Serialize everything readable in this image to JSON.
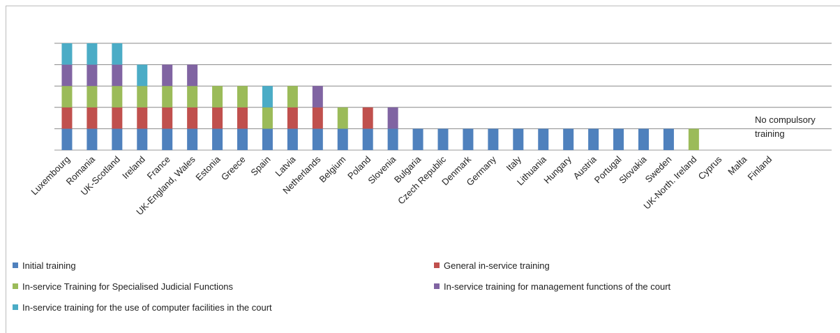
{
  "chart_data": {
    "type": "stacked_bar",
    "categories": [
      "Luxembourg",
      "Romania",
      "UK-Scotland",
      "Ireland",
      "France",
      "UK-England,  Wales",
      "Estonia",
      "Greece",
      "Spain",
      "Latvia",
      "Netherlands",
      "Belgium",
      "Poland",
      "Slovenia",
      "Bulgaria",
      "Czech Republic",
      "Denmark",
      "Germany",
      "Italy",
      "Lithuania",
      "Hungary",
      "Austria",
      "Portugal",
      "Slovakia",
      "Sweden",
      "UK-North. Ireland",
      "Cyprus",
      "Malta",
      "Finland"
    ],
    "series": [
      {
        "name": "Initial training",
        "color": "#4f81bd",
        "values": [
          1,
          1,
          1,
          1,
          1,
          1,
          1,
          1,
          1,
          1,
          1,
          1,
          1,
          1,
          1,
          1,
          1,
          1,
          1,
          1,
          1,
          1,
          1,
          1,
          1,
          0,
          0,
          0,
          0
        ]
      },
      {
        "name": "General in-service training",
        "color": "#c0504d",
        "values": [
          1,
          1,
          1,
          1,
          1,
          1,
          1,
          1,
          0,
          1,
          1,
          0,
          1,
          0,
          0,
          0,
          0,
          0,
          0,
          0,
          0,
          0,
          0,
          0,
          0,
          0,
          0,
          0,
          0
        ]
      },
      {
        "name": "In-service Training for Specialised Judicial Functions",
        "color": "#9bbb59",
        "values": [
          1,
          1,
          1,
          1,
          1,
          1,
          1,
          1,
          1,
          1,
          0,
          1,
          0,
          0,
          0,
          0,
          0,
          0,
          0,
          0,
          0,
          0,
          0,
          0,
          0,
          1,
          0,
          0,
          0
        ]
      },
      {
        "name": "In-service training for management functions of the court",
        "color": "#8064a2",
        "values": [
          1,
          1,
          1,
          0,
          1,
          1,
          0,
          0,
          0,
          0,
          1,
          0,
          0,
          1,
          0,
          0,
          0,
          0,
          0,
          0,
          0,
          0,
          0,
          0,
          0,
          0,
          0,
          0,
          0
        ]
      },
      {
        "name": "In-service training for the use of computer facilities in the court",
        "color": "#4bacc6",
        "values": [
          1,
          1,
          1,
          1,
          0,
          0,
          0,
          0,
          1,
          0,
          0,
          0,
          0,
          0,
          0,
          0,
          0,
          0,
          0,
          0,
          0,
          0,
          0,
          0,
          0,
          0,
          0,
          0,
          0
        ]
      }
    ],
    "ylim": [
      0,
      5
    ],
    "yticks": [
      0,
      1,
      2,
      3,
      4,
      5
    ],
    "grid": true,
    "annotation": "No compulsory training"
  }
}
